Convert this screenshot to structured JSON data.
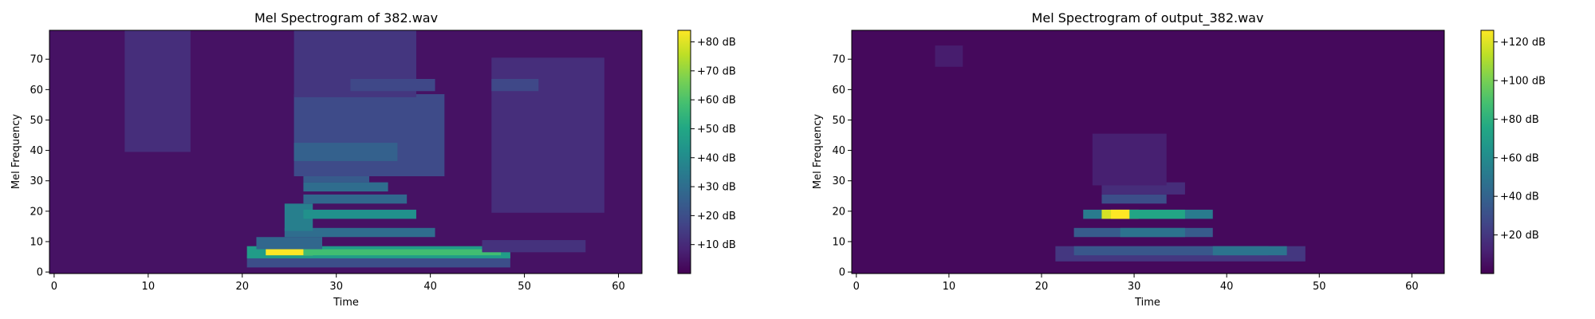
{
  "chart_data": [
    {
      "type": "heatmap",
      "title": "Mel Spectrogram of 382.wav",
      "xlabel": "Time",
      "ylabel": "Mel Frequency",
      "xlim": [
        -0.5,
        62.5
      ],
      "ylim": [
        -0.5,
        79.5
      ],
      "xticks": [
        0,
        10,
        20,
        30,
        40,
        50,
        60
      ],
      "yticks": [
        0,
        10,
        20,
        30,
        40,
        50,
        60,
        70
      ],
      "colormap": "viridis",
      "colorbar": {
        "range": [
          0,
          84
        ],
        "unit": "dB",
        "ticks": [
          10,
          20,
          30,
          40,
          50,
          60,
          70,
          80
        ],
        "tick_labels": [
          "+10 dB",
          "+20 dB",
          "+30 dB",
          "+40 dB",
          "+50 dB",
          "+60 dB",
          "+70 dB",
          "+80 dB"
        ]
      },
      "noise_floor": 4,
      "regions": [
        {
          "t": [
            8,
            14
          ],
          "f": [
            40,
            79
          ],
          "level": 11
        },
        {
          "t": [
            21,
            48
          ],
          "f": [
            2,
            5
          ],
          "level": 20
        },
        {
          "t": [
            21,
            48
          ],
          "f": [
            5,
            8
          ],
          "level": 46
        },
        {
          "t": [
            23,
            27
          ],
          "f": [
            6,
            7
          ],
          "level": 84
        },
        {
          "t": [
            27,
            47
          ],
          "f": [
            6,
            7
          ],
          "level": 58
        },
        {
          "t": [
            22,
            28
          ],
          "f": [
            8,
            11
          ],
          "level": 28
        },
        {
          "t": [
            25,
            40
          ],
          "f": [
            12,
            14
          ],
          "level": 30
        },
        {
          "t": [
            25,
            27
          ],
          "f": [
            14,
            22
          ],
          "level": 36
        },
        {
          "t": [
            27,
            38
          ],
          "f": [
            18,
            20
          ],
          "level": 42
        },
        {
          "t": [
            27,
            37
          ],
          "f": [
            23,
            25
          ],
          "level": 28
        },
        {
          "t": [
            27,
            35
          ],
          "f": [
            27,
            29
          ],
          "level": 30
        },
        {
          "t": [
            27,
            33
          ],
          "f": [
            30,
            32
          ],
          "level": 24
        },
        {
          "t": [
            26,
            41
          ],
          "f": [
            32,
            58
          ],
          "level": 19
        },
        {
          "t": [
            26,
            36
          ],
          "f": [
            37,
            42
          ],
          "level": 26
        },
        {
          "t": [
            26,
            38
          ],
          "f": [
            58,
            79
          ],
          "level": 13
        },
        {
          "t": [
            32,
            40
          ],
          "f": [
            60,
            63
          ],
          "level": 18
        },
        {
          "t": [
            46,
            56
          ],
          "f": [
            7,
            10
          ],
          "level": 12
        },
        {
          "t": [
            47,
            58
          ],
          "f": [
            20,
            70
          ],
          "level": 11
        },
        {
          "t": [
            47,
            51
          ],
          "f": [
            60,
            63
          ],
          "level": 18
        }
      ]
    },
    {
      "type": "heatmap",
      "title": "Mel Spectrogram of output_382.wav",
      "xlabel": "Time",
      "ylabel": "Mel Frequency",
      "xlim": [
        -0.5,
        63.5
      ],
      "ylim": [
        -0.5,
        79.5
      ],
      "xticks": [
        0,
        10,
        20,
        30,
        40,
        50,
        60
      ],
      "yticks": [
        0,
        10,
        20,
        30,
        40,
        50,
        60,
        70
      ],
      "colormap": "viridis",
      "colorbar": {
        "range": [
          0,
          126
        ],
        "unit": "dB",
        "ticks": [
          20,
          40,
          60,
          80,
          100,
          120
        ],
        "tick_labels": [
          "+20 dB",
          "+40 dB",
          "+60 dB",
          "+80 dB",
          "+100 dB",
          "+120 dB"
        ]
      },
      "noise_floor": 3,
      "regions": [
        {
          "t": [
            9,
            11
          ],
          "f": [
            68,
            74
          ],
          "level": 10
        },
        {
          "t": [
            22,
            48
          ],
          "f": [
            4,
            8
          ],
          "level": 20
        },
        {
          "t": [
            24,
            44
          ],
          "f": [
            6,
            8
          ],
          "level": 34
        },
        {
          "t": [
            39,
            46
          ],
          "f": [
            6,
            8
          ],
          "level": 48
        },
        {
          "t": [
            24,
            38
          ],
          "f": [
            12,
            14
          ],
          "level": 36
        },
        {
          "t": [
            29,
            35
          ],
          "f": [
            12,
            14
          ],
          "level": 48
        },
        {
          "t": [
            25,
            38
          ],
          "f": [
            18,
            20
          ],
          "level": 52
        },
        {
          "t": [
            27,
            30
          ],
          "f": [
            18,
            20
          ],
          "level": 118
        },
        {
          "t": [
            28,
            29
          ],
          "f": [
            18,
            20
          ],
          "level": 126
        },
        {
          "t": [
            30,
            35
          ],
          "f": [
            18,
            20
          ],
          "level": 74
        },
        {
          "t": [
            27,
            33
          ],
          "f": [
            23,
            25
          ],
          "level": 30
        },
        {
          "t": [
            27,
            35
          ],
          "f": [
            26,
            29
          ],
          "level": 16
        },
        {
          "t": [
            26,
            33
          ],
          "f": [
            29,
            45
          ],
          "level": 11
        }
      ]
    }
  ]
}
